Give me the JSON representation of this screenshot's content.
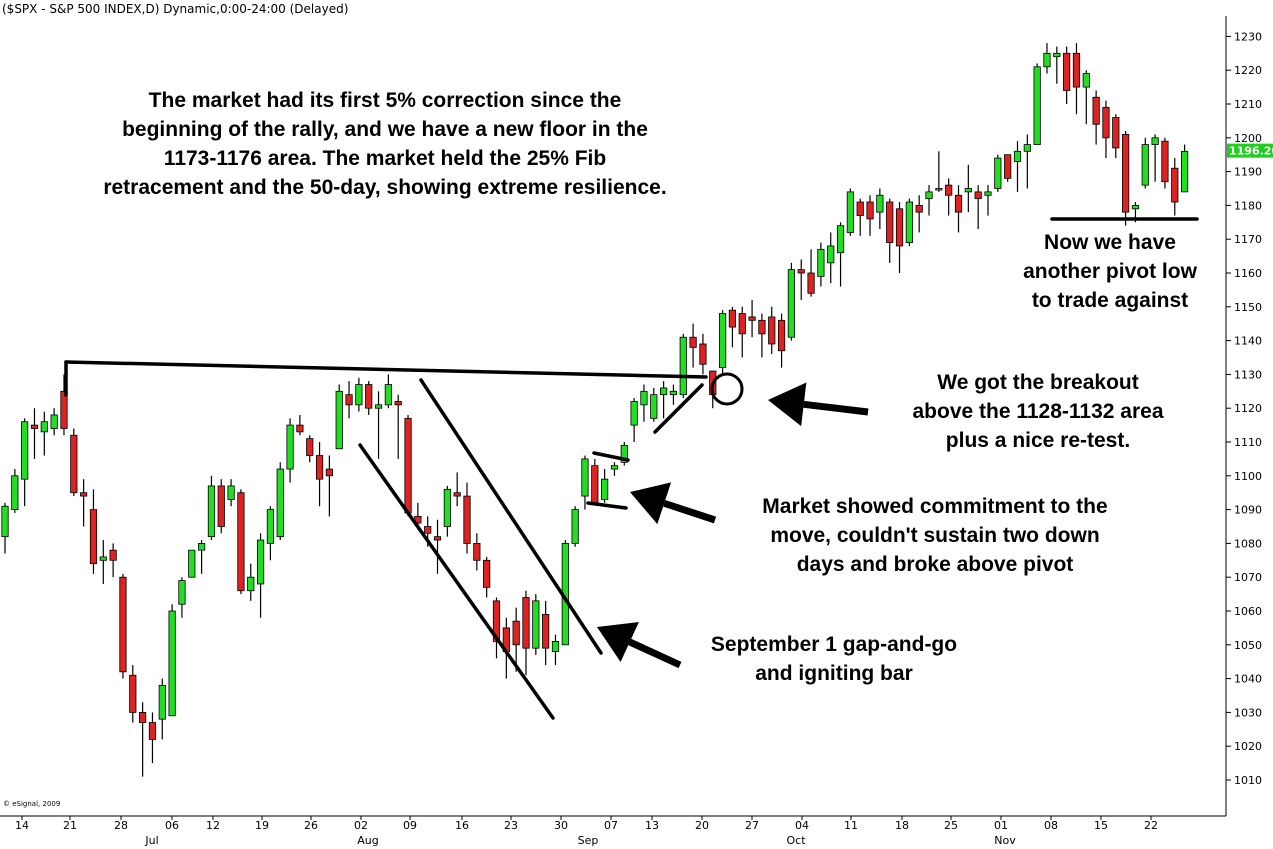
{
  "header": {
    "title": "($SPX - S&P 500 INDEX,D) Dynamic,0:00-24:00 (Delayed)",
    "credit": "© eSignal, 2009",
    "last_price": "1196.20"
  },
  "colors": {
    "up": "#22dd22",
    "down": "#dd2222",
    "last_price_bg": "#22cc22",
    "wick": "#000000"
  },
  "annotations": {
    "correction": [
      "The market had its first 5% correction since the",
      "beginning of the rally, and we have a new floor in the",
      "1173-1176 area. The market held the 25% Fib",
      "retracement and the 50-day, showing extreme resilience."
    ],
    "pivot_low": [
      "Now we have",
      "another pivot low",
      "to trade against"
    ],
    "breakout": [
      "We got the breakout",
      "above the 1128-1132 area",
      "plus a nice re-test."
    ],
    "commitment": [
      "Market showed commitment to the",
      "move, couldn't sustain two down",
      "days and broke above pivot"
    ],
    "gap": [
      "September 1 gap-and-go",
      "and igniting bar"
    ]
  },
  "chart_data": {
    "type": "candlestick",
    "symbol": "$SPX",
    "ylim": [
      1000,
      1235
    ],
    "y_ticks": [
      1010,
      1020,
      1030,
      1040,
      1050,
      1060,
      1070,
      1080,
      1090,
      1100,
      1110,
      1120,
      1130,
      1140,
      1150,
      1160,
      1170,
      1180,
      1190,
      1200,
      1210,
      1220,
      1230
    ],
    "x_day_labels": [
      "14",
      "21",
      "28",
      "06",
      "12",
      "19",
      "26",
      "02",
      "09",
      "16",
      "23",
      "30",
      "07",
      "13",
      "20",
      "27",
      "04",
      "11",
      "18",
      "25",
      "01",
      "08",
      "15",
      "22"
    ],
    "x_month_labels": [
      "Jul",
      "Aug",
      "Sep",
      "Oct",
      "Nov"
    ],
    "last_price": 1196.2,
    "candles": [
      {
        "o": 1082,
        "h": 1092,
        "l": 1077,
        "c": 1091
      },
      {
        "o": 1090,
        "h": 1102,
        "l": 1089,
        "c": 1100
      },
      {
        "o": 1099,
        "h": 1117,
        "l": 1091,
        "c": 1116
      },
      {
        "o": 1115,
        "h": 1120,
        "l": 1105,
        "c": 1114
      },
      {
        "o": 1113,
        "h": 1119,
        "l": 1106,
        "c": 1116
      },
      {
        "o": 1114,
        "h": 1120,
        "l": 1112,
        "c": 1118
      },
      {
        "o": 1125,
        "h": 1130,
        "l": 1112,
        "c": 1114
      },
      {
        "o": 1112,
        "h": 1114,
        "l": 1094,
        "c": 1095
      },
      {
        "o": 1095,
        "h": 1099,
        "l": 1085,
        "c": 1094
      },
      {
        "o": 1090,
        "h": 1096,
        "l": 1071,
        "c": 1074
      },
      {
        "o": 1075,
        "h": 1081,
        "l": 1068,
        "c": 1076
      },
      {
        "o": 1078,
        "h": 1080,
        "l": 1070,
        "c": 1075
      },
      {
        "o": 1070,
        "h": 1071,
        "l": 1040,
        "c": 1042
      },
      {
        "o": 1041,
        "h": 1044,
        "l": 1027,
        "c": 1030
      },
      {
        "o": 1030,
        "h": 1033,
        "l": 1011,
        "c": 1027
      },
      {
        "o": 1027,
        "h": 1030,
        "l": 1015,
        "c": 1022
      },
      {
        "o": 1028,
        "h": 1040,
        "l": 1022,
        "c": 1038
      },
      {
        "o": 1029,
        "h": 1062,
        "l": 1029,
        "c": 1060
      },
      {
        "o": 1062,
        "h": 1070,
        "l": 1058,
        "c": 1069
      },
      {
        "o": 1070,
        "h": 1078,
        "l": 1070,
        "c": 1078
      },
      {
        "o": 1078,
        "h": 1081,
        "l": 1071,
        "c": 1080
      },
      {
        "o": 1082,
        "h": 1100,
        "l": 1081,
        "c": 1097
      },
      {
        "o": 1097,
        "h": 1099,
        "l": 1083,
        "c": 1085
      },
      {
        "o": 1093,
        "h": 1099,
        "l": 1091,
        "c": 1097
      },
      {
        "o": 1095,
        "h": 1096,
        "l": 1065,
        "c": 1066
      },
      {
        "o": 1066,
        "h": 1074,
        "l": 1063,
        "c": 1070
      },
      {
        "o": 1068,
        "h": 1083,
        "l": 1058,
        "c": 1081
      },
      {
        "o": 1080,
        "h": 1091,
        "l": 1075,
        "c": 1090
      },
      {
        "o": 1082,
        "h": 1104,
        "l": 1081,
        "c": 1102
      },
      {
        "o": 1102,
        "h": 1117,
        "l": 1098,
        "c": 1115
      },
      {
        "o": 1115,
        "h": 1118,
        "l": 1112,
        "c": 1113
      },
      {
        "o": 1111,
        "h": 1112,
        "l": 1104,
        "c": 1106
      },
      {
        "o": 1106,
        "h": 1110,
        "l": 1091,
        "c": 1099
      },
      {
        "o": 1102,
        "h": 1106,
        "l": 1088,
        "c": 1100
      },
      {
        "o": 1108,
        "h": 1127,
        "l": 1108,
        "c": 1125
      },
      {
        "o": 1124,
        "h": 1128,
        "l": 1117,
        "c": 1121
      },
      {
        "o": 1121,
        "h": 1129,
        "l": 1119,
        "c": 1127
      },
      {
        "o": 1127,
        "h": 1128,
        "l": 1118,
        "c": 1120
      },
      {
        "o": 1120,
        "h": 1125,
        "l": 1105,
        "c": 1121
      },
      {
        "o": 1121,
        "h": 1130,
        "l": 1120,
        "c": 1127
      },
      {
        "o": 1122,
        "h": 1124,
        "l": 1105,
        "c": 1121
      },
      {
        "o": 1117,
        "h": 1118,
        "l": 1088,
        "c": 1089
      },
      {
        "o": 1088,
        "h": 1092,
        "l": 1084,
        "c": 1086
      },
      {
        "o": 1085,
        "h": 1088,
        "l": 1079,
        "c": 1083
      },
      {
        "o": 1082,
        "h": 1087,
        "l": 1071,
        "c": 1081
      },
      {
        "o": 1085,
        "h": 1097,
        "l": 1082,
        "c": 1096
      },
      {
        "o": 1095,
        "h": 1101,
        "l": 1091,
        "c": 1094
      },
      {
        "o": 1094,
        "h": 1098,
        "l": 1077,
        "c": 1080
      },
      {
        "o": 1080,
        "h": 1083,
        "l": 1072,
        "c": 1075
      },
      {
        "o": 1075,
        "h": 1076,
        "l": 1064,
        "c": 1067
      },
      {
        "o": 1063,
        "h": 1064,
        "l": 1046,
        "c": 1051
      },
      {
        "o": 1055,
        "h": 1058,
        "l": 1040,
        "c": 1048
      },
      {
        "o": 1057,
        "h": 1061,
        "l": 1042,
        "c": 1050
      },
      {
        "o": 1064,
        "h": 1066,
        "l": 1041,
        "c": 1049
      },
      {
        "o": 1049,
        "h": 1065,
        "l": 1047,
        "c": 1063
      },
      {
        "o": 1059,
        "h": 1063,
        "l": 1044,
        "c": 1049
      },
      {
        "o": 1048,
        "h": 1053,
        "l": 1044,
        "c": 1051
      },
      {
        "o": 1050,
        "h": 1081,
        "l": 1050,
        "c": 1080
      },
      {
        "o": 1080,
        "h": 1091,
        "l": 1079,
        "c": 1090
      },
      {
        "o": 1094,
        "h": 1106,
        "l": 1090,
        "c": 1105
      },
      {
        "o": 1103,
        "h": 1105,
        "l": 1092,
        "c": 1092
      },
      {
        "o": 1093,
        "h": 1102,
        "l": 1092,
        "c": 1099
      },
      {
        "o": 1102,
        "h": 1104,
        "l": 1100,
        "c": 1103
      },
      {
        "o": 1104,
        "h": 1110,
        "l": 1103,
        "c": 1109
      },
      {
        "o": 1115,
        "h": 1123,
        "l": 1110,
        "c": 1122
      },
      {
        "o": 1121,
        "h": 1127,
        "l": 1116,
        "c": 1125
      },
      {
        "o": 1117,
        "h": 1126,
        "l": 1116,
        "c": 1124
      },
      {
        "o": 1124,
        "h": 1128,
        "l": 1117,
        "c": 1126
      },
      {
        "o": 1124,
        "h": 1127,
        "l": 1121,
        "c": 1125
      },
      {
        "o": 1124,
        "h": 1142,
        "l": 1123,
        "c": 1141
      },
      {
        "o": 1141,
        "h": 1145,
        "l": 1132,
        "c": 1138
      },
      {
        "o": 1139,
        "h": 1142,
        "l": 1130,
        "c": 1133
      },
      {
        "o": 1131,
        "h": 1131,
        "l": 1120,
        "c": 1124
      },
      {
        "o": 1132,
        "h": 1149,
        "l": 1130,
        "c": 1148
      },
      {
        "o": 1149,
        "h": 1150,
        "l": 1138,
        "c": 1144
      },
      {
        "o": 1148,
        "h": 1150,
        "l": 1135,
        "c": 1142
      },
      {
        "o": 1147,
        "h": 1152,
        "l": 1141,
        "c": 1146
      },
      {
        "o": 1146,
        "h": 1148,
        "l": 1135,
        "c": 1142
      },
      {
        "o": 1147,
        "h": 1150,
        "l": 1136,
        "c": 1139
      },
      {
        "o": 1146,
        "h": 1148,
        "l": 1132,
        "c": 1137
      },
      {
        "o": 1141,
        "h": 1163,
        "l": 1140,
        "c": 1161
      },
      {
        "o": 1161,
        "h": 1164,
        "l": 1152,
        "c": 1160
      },
      {
        "o": 1160,
        "h": 1167,
        "l": 1153,
        "c": 1154
      },
      {
        "o": 1159,
        "h": 1169,
        "l": 1156,
        "c": 1167
      },
      {
        "o": 1163,
        "h": 1172,
        "l": 1157,
        "c": 1168
      },
      {
        "o": 1166,
        "h": 1175,
        "l": 1156,
        "c": 1174
      },
      {
        "o": 1172,
        "h": 1185,
        "l": 1171,
        "c": 1184
      },
      {
        "o": 1181,
        "h": 1182,
        "l": 1171,
        "c": 1177
      },
      {
        "o": 1181,
        "h": 1183,
        "l": 1171,
        "c": 1176
      },
      {
        "o": 1178,
        "h": 1185,
        "l": 1173,
        "c": 1183
      },
      {
        "o": 1181,
        "h": 1182,
        "l": 1163,
        "c": 1169
      },
      {
        "o": 1179,
        "h": 1181,
        "l": 1160,
        "c": 1168
      },
      {
        "o": 1169,
        "h": 1182,
        "l": 1168,
        "c": 1181
      },
      {
        "o": 1180,
        "h": 1183,
        "l": 1172,
        "c": 1178
      },
      {
        "o": 1182,
        "h": 1186,
        "l": 1177,
        "c": 1184
      },
      {
        "o": 1185,
        "h": 1196,
        "l": 1184,
        "c": 1185
      },
      {
        "o": 1186,
        "h": 1188,
        "l": 1177,
        "c": 1183
      },
      {
        "o": 1183,
        "h": 1186,
        "l": 1172,
        "c": 1178
      },
      {
        "o": 1184,
        "h": 1192,
        "l": 1178,
        "c": 1185
      },
      {
        "o": 1184,
        "h": 1186,
        "l": 1173,
        "c": 1182
      },
      {
        "o": 1183,
        "h": 1186,
        "l": 1177,
        "c": 1184
      },
      {
        "o": 1185,
        "h": 1195,
        "l": 1184,
        "c": 1194
      },
      {
        "o": 1195,
        "h": 1194,
        "l": 1187,
        "c": 1188
      },
      {
        "o": 1193,
        "h": 1199,
        "l": 1184,
        "c": 1196
      },
      {
        "o": 1196,
        "h": 1201,
        "l": 1185,
        "c": 1198
      },
      {
        "o": 1198,
        "h": 1222,
        "l": 1198,
        "c": 1221
      },
      {
        "o": 1221,
        "h": 1228,
        "l": 1219,
        "c": 1225
      },
      {
        "o": 1224,
        "h": 1227,
        "l": 1216,
        "c": 1225
      },
      {
        "o": 1225,
        "h": 1227,
        "l": 1210,
        "c": 1214
      },
      {
        "o": 1225,
        "h": 1228,
        "l": 1207,
        "c": 1215
      },
      {
        "o": 1215,
        "h": 1220,
        "l": 1204,
        "c": 1219
      },
      {
        "o": 1212,
        "h": 1214,
        "l": 1198,
        "c": 1204
      },
      {
        "o": 1209,
        "h": 1211,
        "l": 1194,
        "c": 1200
      },
      {
        "o": 1206,
        "h": 1207,
        "l": 1194,
        "c": 1197
      },
      {
        "o": 1201,
        "h": 1202,
        "l": 1174,
        "c": 1178
      },
      {
        "o": 1179,
        "h": 1181,
        "l": 1175,
        "c": 1180
      },
      {
        "o": 1186,
        "h": 1200,
        "l": 1185,
        "c": 1198
      },
      {
        "o": 1198,
        "h": 1201,
        "l": 1187,
        "c": 1200
      },
      {
        "o": 1199,
        "h": 1200,
        "l": 1185,
        "c": 1187
      },
      {
        "o": 1191,
        "h": 1194,
        "l": 1177,
        "c": 1181
      },
      {
        "o": 1184,
        "h": 1198,
        "l": 1184,
        "c": 1196
      }
    ]
  }
}
